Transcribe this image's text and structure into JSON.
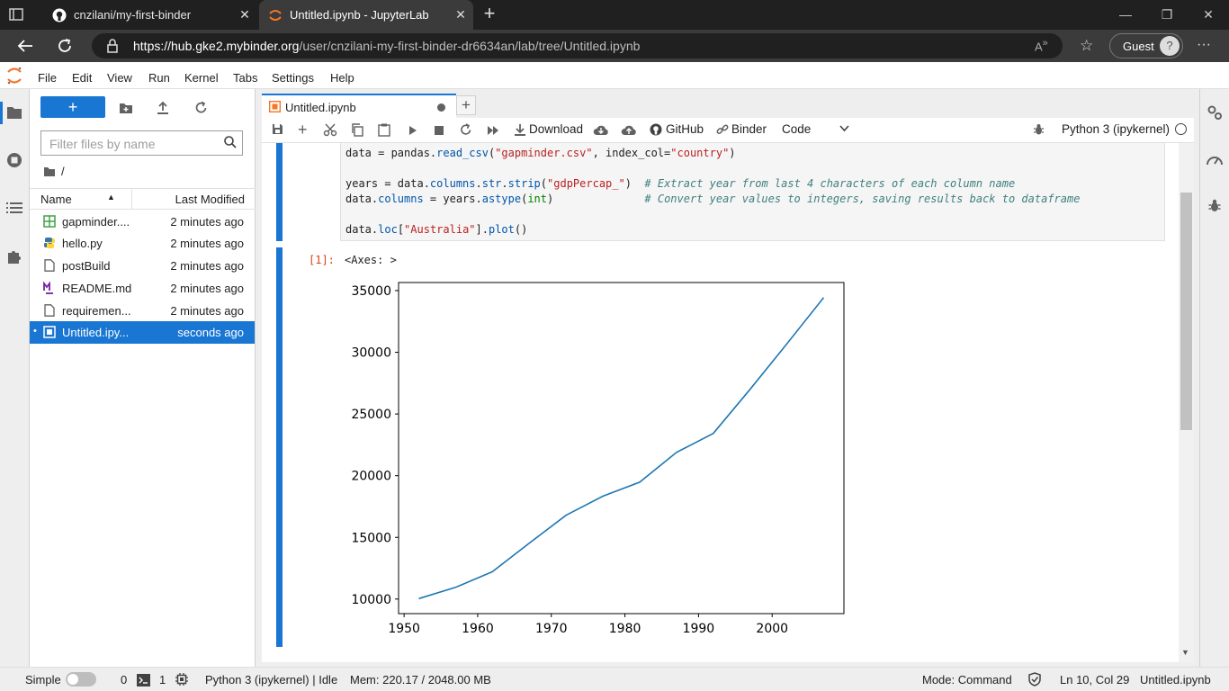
{
  "browser": {
    "tabs": [
      {
        "title": "cnzilani/my-first-binder"
      },
      {
        "title": "Untitled.ipynb - JupyterLab"
      }
    ],
    "url_host": "https://hub.gke2.mybinder.org",
    "url_path": "/user/cnzilani-my-first-binder-dr6634an/lab/tree/Untitled.ipynb",
    "profile": "Guest"
  },
  "menu": [
    "File",
    "Edit",
    "View",
    "Run",
    "Kernel",
    "Tabs",
    "Settings",
    "Help"
  ],
  "filebrowser": {
    "new_label": "+",
    "filter_placeholder": "Filter files by name",
    "breadcrumb": "/",
    "col_name": "Name",
    "col_modified": "Last Modified",
    "files": [
      {
        "name": "gapminder....",
        "modified": "2 minutes ago",
        "icon": "spreadsheet-icon"
      },
      {
        "name": "hello.py",
        "modified": "2 minutes ago",
        "icon": "python-icon"
      },
      {
        "name": "postBuild",
        "modified": "2 minutes ago",
        "icon": "file-icon"
      },
      {
        "name": "README.md",
        "modified": "2 minutes ago",
        "icon": "markdown-icon"
      },
      {
        "name": "requiremen...",
        "modified": "2 minutes ago",
        "icon": "file-icon"
      },
      {
        "name": "Untitled.ipy...",
        "modified": "seconds ago",
        "icon": "notebook-icon",
        "selected": true
      }
    ]
  },
  "notebook": {
    "tab_title": "Untitled.ipynb",
    "toolbar": {
      "download": "Download",
      "github": "GitHub",
      "binder": "Binder",
      "cell_type": "Code",
      "kernel": "Python 3 (ipykernel)"
    },
    "code_lines": [
      "data = pandas.read_csv(\"gapminder.csv\", index_col=\"country\")",
      "",
      "years = data.columns.str.strip(\"gdpPercap_\")  # Extract year from last 4 characters of each column name",
      "data.columns = years.astype(int)              # Convert year values to integers, saving results back to dataframe",
      "",
      "data.loc[\"Australia\"].plot()"
    ],
    "prompt": "[1]:",
    "output_text": "<Axes: >"
  },
  "chart_data": {
    "type": "line",
    "x": [
      1952,
      1957,
      1962,
      1967,
      1972,
      1977,
      1982,
      1987,
      1992,
      1997,
      2002,
      2007
    ],
    "series": [
      {
        "values": [
          10040,
          10950,
          12218,
          14526,
          16789,
          18334,
          19477,
          21889,
          23425,
          26998,
          30688,
          34435
        ]
      }
    ],
    "xticks": [
      1950,
      1960,
      1970,
      1980,
      1990,
      2000
    ],
    "yticks": [
      10000,
      15000,
      20000,
      25000,
      30000,
      35000
    ],
    "xlim": [
      1949.25,
      2009.75
    ],
    "ylim": [
      8820,
      35655
    ],
    "line_color": "#1f77b4",
    "title": "",
    "xlabel": "",
    "ylabel": ""
  },
  "status": {
    "mode_label": "Simple",
    "terminals": "0",
    "kernels": "1",
    "kernel_status": "Python 3 (ipykernel) | Idle",
    "mem": "Mem: 220.17 / 2048.00 MB",
    "mode": "Mode: Command",
    "position": "Ln 10, Col 29",
    "filename": "Untitled.ipynb"
  }
}
